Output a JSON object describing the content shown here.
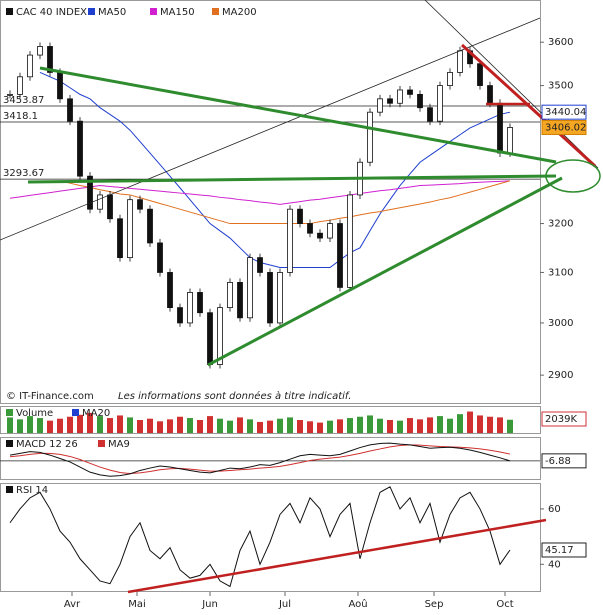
{
  "chart_data": {
    "type": "candlestick",
    "title": "CAC 40 INDEX",
    "close": [
      3480,
      3520,
      3570,
      3590,
      3530,
      3470,
      3420,
      3300,
      3230,
      3260,
      3210,
      3130,
      3250,
      3230,
      3160,
      3100,
      3030,
      3000,
      3060,
      3020,
      2920,
      3030,
      3080,
      3010,
      3130,
      3100,
      3000,
      3100,
      3230,
      3200,
      3180,
      3170,
      3200,
      3070,
      3260,
      3330,
      3440,
      3470,
      3460,
      3490,
      3480,
      3450,
      3420,
      3500,
      3530,
      3580,
      3550,
      3500,
      3460,
      3350,
      3406.02
    ],
    "series": [
      {
        "name": "MA50",
        "color": "#1f3fcf",
        "values": [
          null,
          null,
          null,
          3530,
          3520,
          3510,
          3495,
          3480,
          3470,
          3450,
          3435,
          3420,
          3400,
          3375,
          3350,
          3325,
          3300,
          3275,
          3250,
          3225,
          3200,
          3185,
          3170,
          3150,
          3130,
          3120,
          3115,
          3110,
          3110,
          3110,
          3110,
          3110,
          3110,
          3125,
          3140,
          3150,
          3185,
          3220,
          3250,
          3280,
          3305,
          3330,
          3345,
          3360,
          3375,
          3390,
          3405,
          3415,
          3425,
          3435,
          3440.04
        ]
      },
      {
        "name": "MA150",
        "color": "#d020d0",
        "values": [
          3253,
          3256,
          3259,
          3262,
          3265,
          3268,
          3271,
          3274,
          3277,
          3280,
          3278,
          3276,
          3274,
          3272,
          3270,
          3268,
          3266,
          3264,
          3262,
          3260,
          3258,
          3255,
          3253,
          3250,
          3248,
          3245,
          3243,
          3240,
          3243,
          3246,
          3249,
          3251,
          3254,
          3257,
          3260,
          3263,
          3266,
          3269,
          3271,
          3274,
          3277,
          3280,
          3281,
          3282,
          3283,
          3284,
          3286,
          3287,
          3288,
          3289,
          3290
        ]
      },
      {
        "name": "MA200",
        "color": "#e07020",
        "values": [
          null,
          null,
          null,
          null,
          null,
          3290,
          3285,
          3280,
          3276,
          3271,
          3267,
          3262,
          3260,
          3254,
          3248,
          3242,
          3236,
          3230,
          3224,
          3218,
          3212,
          3206,
          3200,
          3200,
          3200,
          3200,
          3200,
          3200,
          3200,
          3200,
          3200,
          3204,
          3207,
          3211,
          3214,
          3218,
          3222,
          3225,
          3229,
          3233,
          3237,
          3241,
          3245,
          3250,
          3254,
          3260,
          3266,
          3272,
          3278,
          3284,
          3290
        ]
      }
    ],
    "ylim": [
      2848,
      3700
    ],
    "yticks": [
      3600,
      3500,
      3200,
      3100,
      3000,
      2900
    ],
    "log_scale": true,
    "levels": [
      3453.87,
      3418.1,
      3293.67
    ],
    "xticks": [
      {
        "value": 6.2,
        "label": "Avr"
      },
      {
        "value": 12.7,
        "label": "Mai"
      },
      {
        "value": 20,
        "label": "Jun"
      },
      {
        "value": 27.5,
        "label": "Jul"
      },
      {
        "value": 34.8,
        "label": "Aoû"
      },
      {
        "value": 42.4,
        "label": "Sep"
      },
      {
        "value": 49.5,
        "label": "Oct"
      }
    ],
    "footer": "© IT-Finance.com",
    "disclaimer": "Les informations sont données à titre indicatif.",
    "volume": {
      "name": "Volume",
      "ma_name": "MA20",
      "color": "#3a9a3a",
      "down_color": "#d03030",
      "ylim": [
        0,
        4000
      ],
      "last_label": "2039K",
      "values": [
        2400,
        2100,
        2600,
        2300,
        1900,
        2200,
        2500,
        2800,
        3100,
        2600,
        2300,
        2700,
        2400,
        2000,
        2200,
        1800,
        2100,
        2500,
        2300,
        2000,
        2600,
        2200,
        1900,
        2400,
        2100,
        1700,
        1900,
        2200,
        2400,
        2000,
        1800,
        1600,
        1900,
        2100,
        2300,
        2500,
        2700,
        2200,
        2000,
        1900,
        2300,
        2100,
        2400,
        2600,
        2200,
        2900,
        3300,
        2700,
        2500,
        2400,
        2039
      ]
    },
    "macd": {
      "name": "MACD 12 26",
      "signal_name": "MA9",
      "color": "#111111",
      "signal_color": "#d03030",
      "ylim": [
        -60,
        60
      ],
      "values": [
        10,
        15,
        20,
        18,
        10,
        0,
        -10,
        -25,
        -40,
        -48,
        -52,
        -50,
        -45,
        -35,
        -28,
        -22,
        -25,
        -30,
        -35,
        -40,
        -42,
        -35,
        -28,
        -30,
        -25,
        -18,
        -20,
        -12,
        -2,
        8,
        12,
        10,
        8,
        12,
        22,
        32,
        40,
        44,
        45,
        42,
        40,
        35,
        30,
        32,
        33,
        30,
        25,
        18,
        10,
        2,
        -6.88
      ],
      "signal": [
        5,
        8,
        12,
        15,
        15,
        12,
        6,
        -3,
        -14,
        -25,
        -34,
        -41,
        -44,
        -42,
        -38,
        -33,
        -30,
        -29,
        -31,
        -34,
        -37,
        -37,
        -35,
        -33,
        -31,
        -28,
        -26,
        -23,
        -18,
        -12,
        -6,
        -2,
        1,
        4,
        9,
        15,
        22,
        28,
        34,
        38,
        40,
        39,
        37,
        35,
        34,
        33,
        31,
        28,
        24,
        19,
        13
      ]
    },
    "rsi": {
      "name": "RSI 14",
      "color": "#111111",
      "ylim": [
        30,
        69
      ],
      "yticks": [
        40,
        60
      ],
      "values": [
        55,
        60,
        64,
        66,
        60,
        52,
        48,
        42,
        38,
        34,
        33,
        40,
        50,
        55,
        45,
        42,
        46,
        38,
        35,
        36,
        40,
        34,
        32,
        45,
        52,
        40,
        48,
        58,
        62,
        55,
        64,
        60,
        50,
        58,
        62,
        42,
        55,
        66,
        68,
        60,
        64,
        55,
        62,
        48,
        58,
        64,
        66,
        60,
        52,
        40,
        45.17
      ]
    }
  }
}
